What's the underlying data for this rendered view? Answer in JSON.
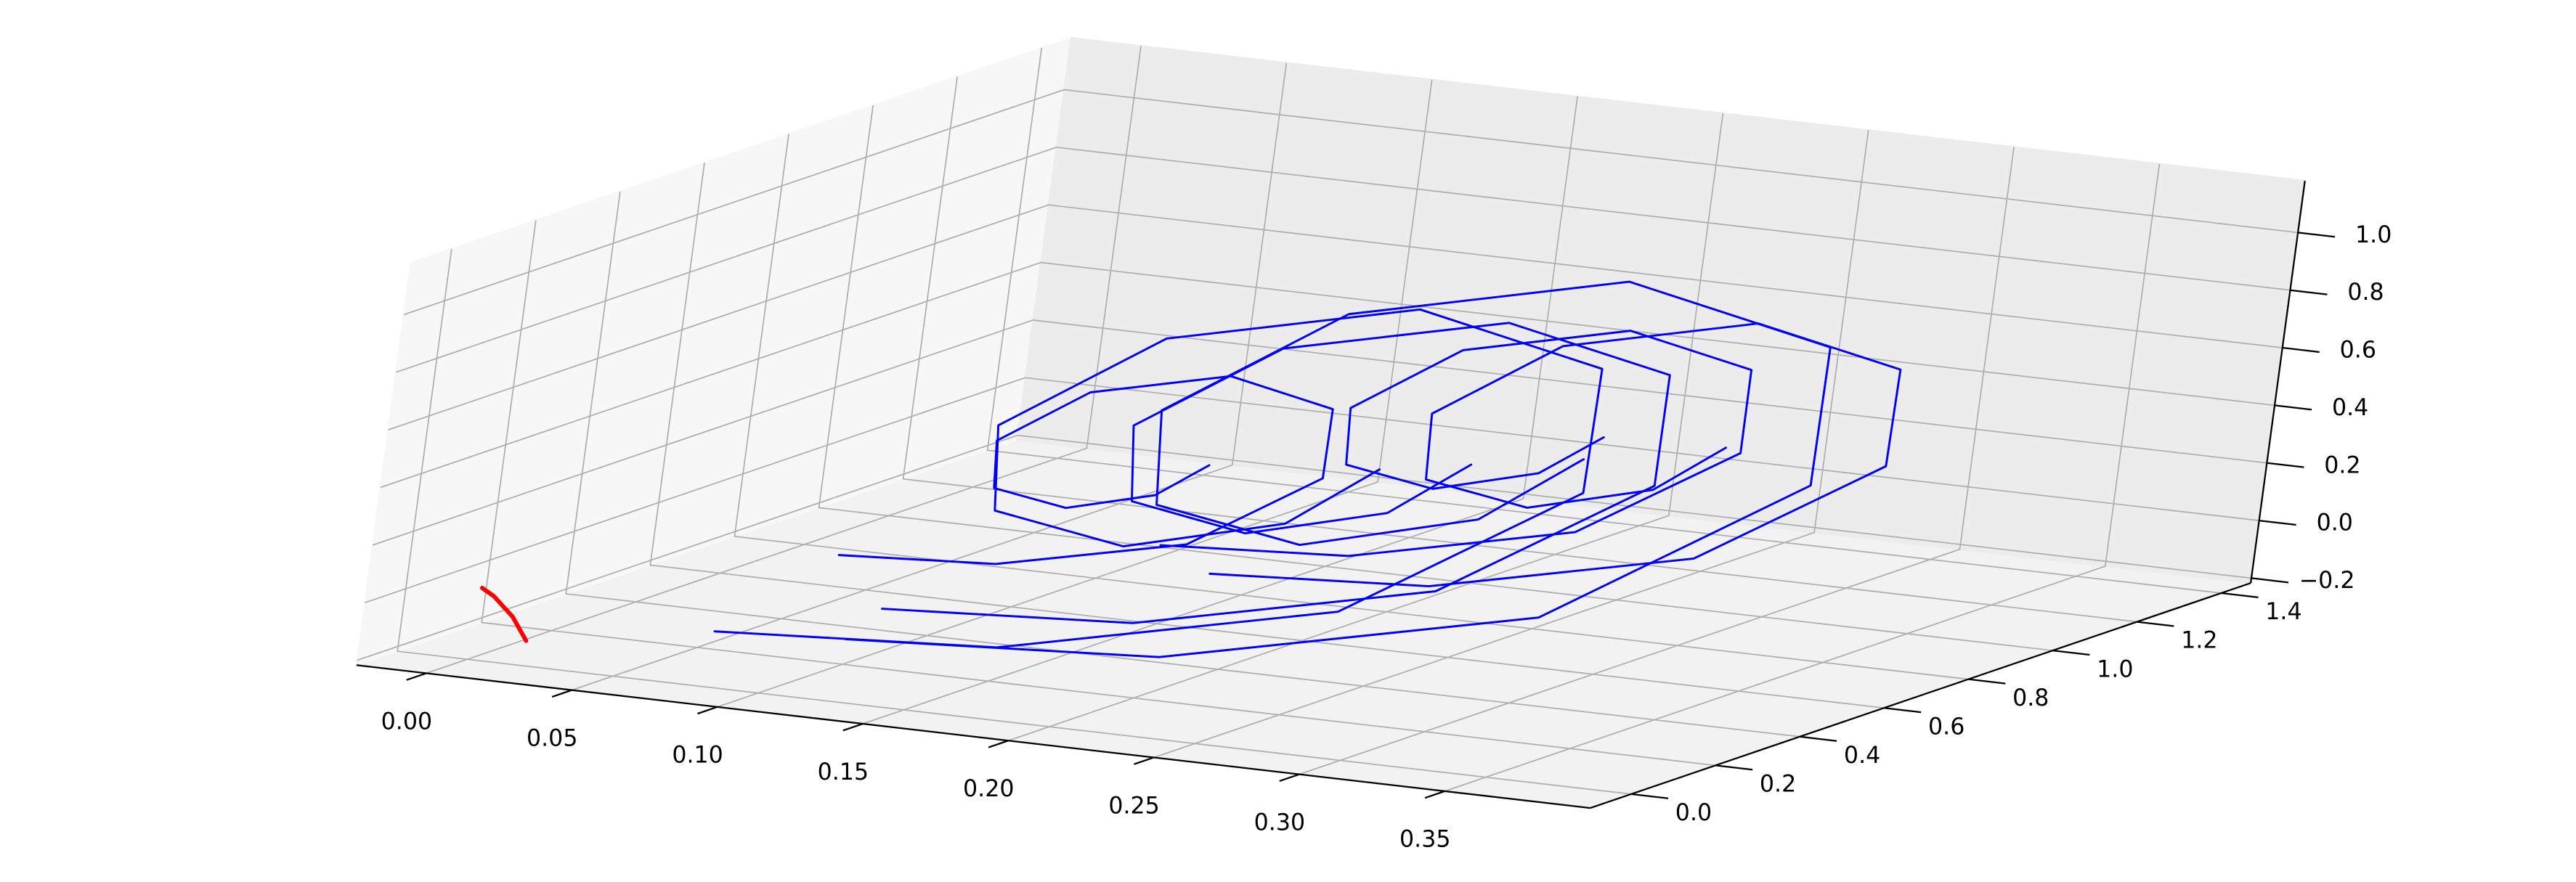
{
  "chart_data": {
    "type": "line3d",
    "grid": true,
    "xlim": [
      -0.024,
      0.4
    ],
    "ylim": [
      -0.097,
      1.47
    ],
    "zlim": [
      -0.217,
      1.18
    ],
    "xticks": [
      {
        "value": 0,
        "label": "0.00"
      },
      0.05,
      {
        "value": 0.1,
        "label": "0.10"
      },
      0.15,
      {
        "value": 0.2,
        "label": "0.20"
      },
      0.25,
      {
        "value": 0.3,
        "label": "0.30"
      },
      0.35
    ],
    "yticks": [
      {
        "value": 0,
        "label": "0.0"
      },
      0.2,
      0.4,
      0.6,
      0.8,
      {
        "value": 1,
        "label": "1.0"
      },
      1.2,
      1.4
    ],
    "zticks": [
      {
        "value": -0.2,
        "label": "−0.2"
      },
      {
        "value": 0,
        "label": "0.0"
      },
      0.2,
      0.4,
      0.6,
      0.8,
      {
        "value": 1,
        "label": "1.0"
      }
    ],
    "series": [
      {
        "color": "#0000ff",
        "x": [
          0.1,
          0.2,
          0.299,
          0.331,
          0.285,
          0.2,
          0.128,
          0.108,
          0.142,
          0.2,
          0.244,
          0.253
        ],
        "y": [
          0.2,
          0.25,
          0.453,
          0.85,
          1.191,
          1.294,
          1.136,
          0.85,
          0.619,
          0.562,
          0.674,
          0.85
        ],
        "z": [
          -0.13,
          -0.1,
          0.052,
          0.35,
          0.606,
          0.683,
          0.565,
          0.35,
          0.177,
          0.134,
          0.218,
          0.35
        ]
      },
      {
        "color": "#0000ff",
        "x": [
          0.1,
          0.18,
          0.259,
          0.285,
          0.248,
          0.18,
          0.122,
          0.106,
          0.134,
          0.18,
          0.215,
          0.222
        ],
        "y": [
          0.28,
          0.32,
          0.482,
          0.8,
          1.073,
          1.155,
          1.029,
          0.8,
          0.615,
          0.57,
          0.659,
          0.8
        ],
        "z": [
          -0.064,
          -0.04,
          0.082,
          0.32,
          0.525,
          0.586,
          0.492,
          0.32,
          0.182,
          0.147,
          0.214,
          0.32
        ]
      },
      {
        "color": "#0000ff",
        "x": [
          0.16,
          0.22,
          0.279,
          0.299,
          0.271,
          0.22,
          0.177,
          0.165,
          0.185,
          0.22,
          0.246,
          0.252
        ],
        "y": [
          0.51,
          0.54,
          0.662,
          0.9,
          1.105,
          1.166,
          1.072,
          0.9,
          0.761,
          0.727,
          0.794,
          0.9
        ],
        "z": [
          0.112,
          0.13,
          0.221,
          0.4,
          0.554,
          0.6,
          0.529,
          0.4,
          0.296,
          0.27,
          0.321,
          0.4
        ]
      },
      {
        "color": "#0000ff",
        "x": [
          0.06,
          0.15,
          0.239,
          0.268,
          0.227,
          0.15,
          0.085,
          0.067,
          0.098,
          0.15,
          0.19,
          0.198
        ],
        "y": [
          0.165,
          0.21,
          0.393,
          0.75,
          1.057,
          1.15,
          1.007,
          0.75,
          0.542,
          0.491,
          0.592,
          0.75
        ],
        "z": [
          -0.132,
          -0.105,
          0.032,
          0.3,
          0.53,
          0.6,
          0.494,
          0.3,
          0.144,
          0.106,
          0.181,
          0.3
        ]
      },
      {
        "color": "#0000ff",
        "x": [
          0.18,
          0.25,
          0.319,
          0.342,
          0.31,
          0.25,
          0.2,
          0.186,
          0.209,
          0.25,
          0.281,
          0.287
        ],
        "y": [
          0.495,
          0.53,
          0.672,
          0.95,
          1.189,
          1.261,
          1.15,
          0.95,
          0.788,
          0.748,
          0.827,
          0.95
        ],
        "z": [
          0.044,
          0.065,
          0.171,
          0.38,
          0.559,
          0.613,
          0.531,
          0.38,
          0.259,
          0.229,
          0.288,
          0.38
        ]
      },
      {
        "color": "#0000ff",
        "x": [
          0.07,
          0.12,
          0.17,
          0.186,
          0.163,
          0.12,
          0.084,
          0.074,
          0.091,
          0.12,
          0.142,
          0.147
        ],
        "y": [
          0.375,
          0.4,
          0.501,
          0.7,
          0.871,
          0.922,
          0.843,
          0.7,
          0.584,
          0.556,
          0.612,
          0.7
        ],
        "z": [
          0.04,
          0.055,
          0.131,
          0.28,
          0.408,
          0.447,
          0.388,
          0.28,
          0.193,
          0.172,
          0.214,
          0.28
        ]
      },
      {
        "color": "#ff0000",
        "x": [
          -0.005,
          0.0,
          0.008,
          0.015
        ],
        "y": [
          0.05,
          0.045,
          0.04,
          0.03
        ],
        "z": [
          0.0,
          -0.02,
          -0.08,
          -0.15
        ]
      }
    ]
  }
}
